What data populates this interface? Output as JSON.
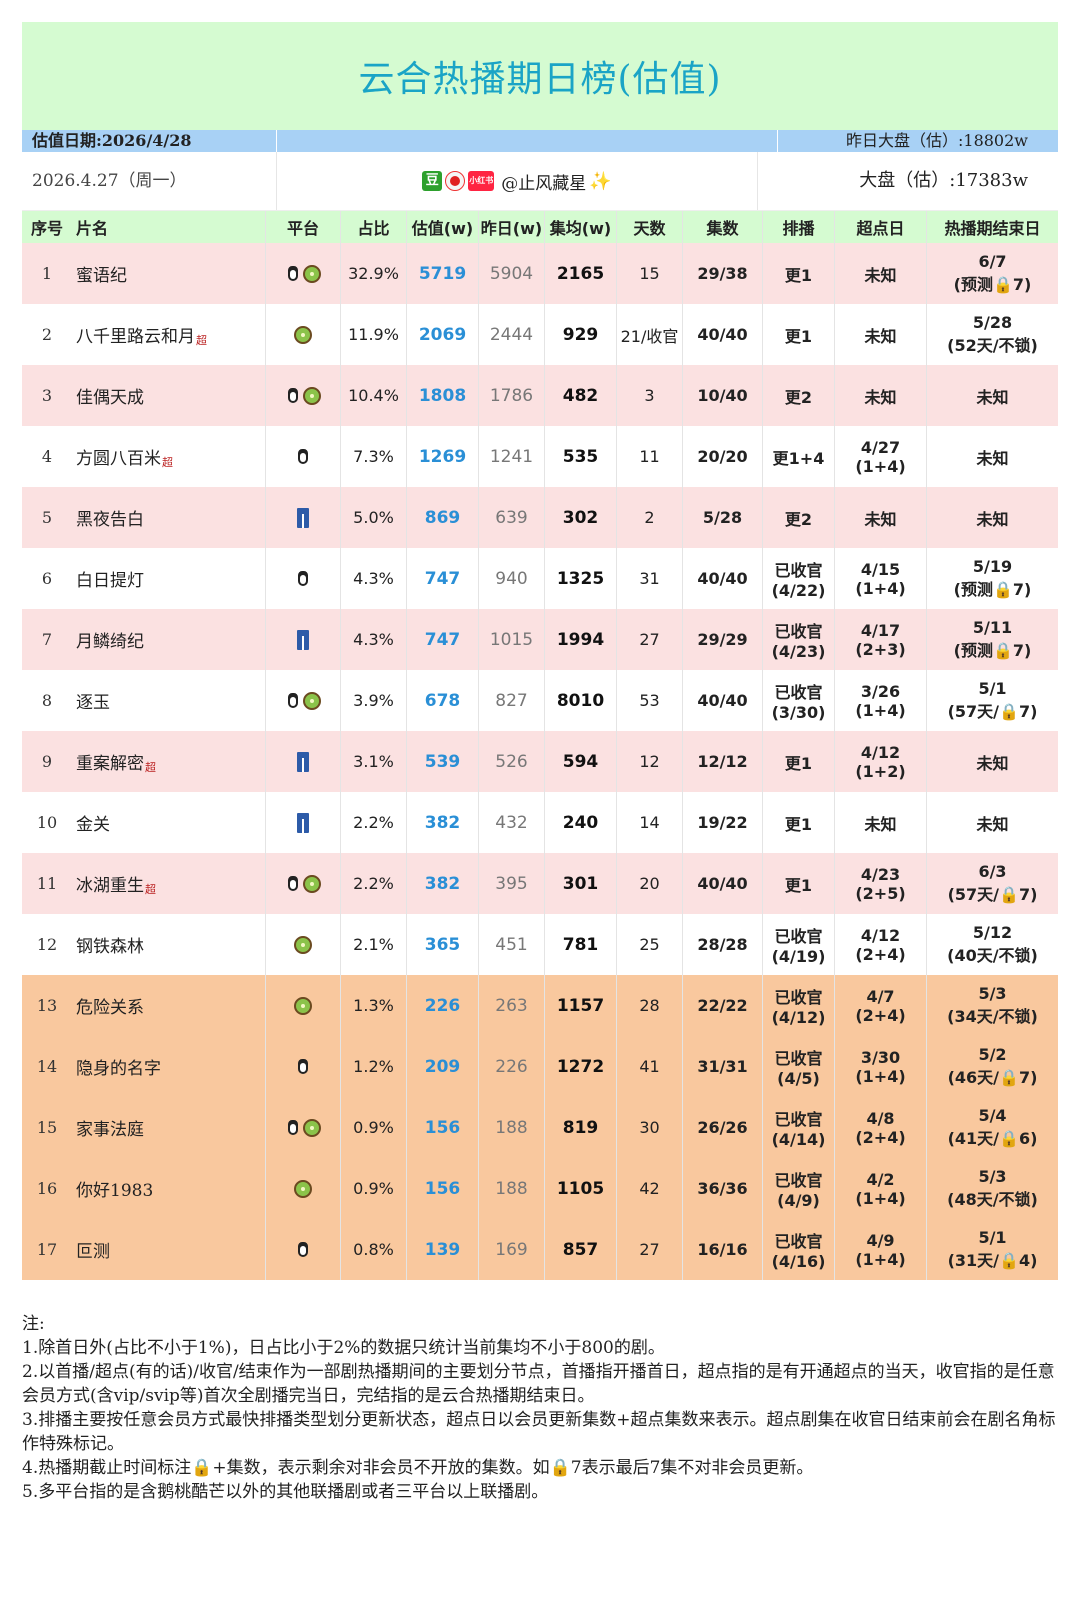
{
  "title": "云合热播期日榜(估值)",
  "date_bar": {
    "left": "估值日期:2026/4/28",
    "right": "昨日大盘（估）:18802w"
  },
  "info_bar": {
    "left": "2026.4.27（周一）",
    "badge_dou": "豆",
    "badge_xhs": "小红书",
    "handle": "@止风藏星",
    "sparkle": "✨",
    "right": "大盘（估）:17383w"
  },
  "headers": [
    "序号",
    "片名",
    "平台",
    "占比",
    "估值(w)",
    "昨日(w)",
    "集均(w)",
    "天数",
    "集数",
    "排播",
    "超点日",
    "热播期结束日"
  ],
  "rows": [
    {
      "no": "1",
      "name": "蜜语纪",
      "sup": "",
      "plat": [
        "penguin-icon",
        "kiwi-icon"
      ],
      "ratio": "32.9%",
      "est": "5719",
      "yes": "5904",
      "avg": "2165",
      "days": "15",
      "eps": "29/38",
      "sched": [
        "更1"
      ],
      "peak": [
        "未知"
      ],
      "end": [
        "6/7",
        "(预测🔒7)"
      ],
      "bg": "pink"
    },
    {
      "no": "2",
      "name": "八千里路云和月",
      "sup": "超",
      "plat": [
        "kiwi-icon"
      ],
      "ratio": "11.9%",
      "est": "2069",
      "yes": "2444",
      "avg": "929",
      "days": "21/收官",
      "eps": "40/40",
      "sched": [
        "更1"
      ],
      "peak": [
        "未知"
      ],
      "end": [
        "5/28",
        "(52天/不锁)"
      ],
      "bg": "white"
    },
    {
      "no": "3",
      "name": "佳偶天成",
      "sup": "",
      "plat": [
        "penguin-icon",
        "kiwi-icon"
      ],
      "ratio": "10.4%",
      "est": "1808",
      "yes": "1786",
      "avg": "482",
      "days": "3",
      "eps": "10/40",
      "sched": [
        "更2"
      ],
      "peak": [
        "未知"
      ],
      "end": [
        "未知"
      ],
      "bg": "pink"
    },
    {
      "no": "4",
      "name": "方圆八百米",
      "sup": "超",
      "plat": [
        "penguin-icon"
      ],
      "ratio": "7.3%",
      "est": "1269",
      "yes": "1241",
      "avg": "535",
      "days": "11",
      "eps": "20/20",
      "sched": [
        "更1+4"
      ],
      "peak": [
        "4/27",
        "(1+4)"
      ],
      "end": [
        "未知"
      ],
      "bg": "white"
    },
    {
      "no": "5",
      "name": "黑夜告白",
      "sup": "",
      "plat": [
        "jeans-icon"
      ],
      "ratio": "5.0%",
      "est": "869",
      "yes": "639",
      "avg": "302",
      "days": "2",
      "eps": "5/28",
      "sched": [
        "更2"
      ],
      "peak": [
        "未知"
      ],
      "end": [
        "未知"
      ],
      "bg": "pink"
    },
    {
      "no": "6",
      "name": "白日提灯",
      "sup": "",
      "plat": [
        "penguin-icon"
      ],
      "ratio": "4.3%",
      "est": "747",
      "yes": "940",
      "avg": "1325",
      "days": "31",
      "eps": "40/40",
      "sched": [
        "已收官",
        "(4/22)"
      ],
      "peak": [
        "4/15",
        "(1+4)"
      ],
      "end": [
        "5/19",
        "(预测🔒7)"
      ],
      "bg": "white"
    },
    {
      "no": "7",
      "name": "月鳞绮纪",
      "sup": "",
      "plat": [
        "jeans-icon"
      ],
      "ratio": "4.3%",
      "est": "747",
      "yes": "1015",
      "avg": "1994",
      "days": "27",
      "eps": "29/29",
      "sched": [
        "已收官",
        "(4/23)"
      ],
      "peak": [
        "4/17",
        "(2+3)"
      ],
      "end": [
        "5/11",
        "(预测🔒7)"
      ],
      "bg": "pink"
    },
    {
      "no": "8",
      "name": "逐玉",
      "sup": "",
      "plat": [
        "penguin-icon",
        "kiwi-icon"
      ],
      "ratio": "3.9%",
      "est": "678",
      "yes": "827",
      "avg": "8010",
      "days": "53",
      "eps": "40/40",
      "sched": [
        "已收官",
        "(3/30)"
      ],
      "peak": [
        "3/26",
        "(1+4)"
      ],
      "end": [
        "5/1",
        "(57天/🔒7)"
      ],
      "bg": "white"
    },
    {
      "no": "9",
      "name": "重案解密",
      "sup": "超",
      "plat": [
        "jeans-icon"
      ],
      "ratio": "3.1%",
      "est": "539",
      "yes": "526",
      "avg": "594",
      "days": "12",
      "eps": "12/12",
      "sched": [
        "更1"
      ],
      "peak": [
        "4/12",
        "(1+2)"
      ],
      "end": [
        "未知"
      ],
      "bg": "pink"
    },
    {
      "no": "10",
      "name": "金关",
      "sup": "",
      "plat": [
        "jeans-icon"
      ],
      "ratio": "2.2%",
      "est": "382",
      "yes": "432",
      "avg": "240",
      "days": "14",
      "eps": "19/22",
      "sched": [
        "更1"
      ],
      "peak": [
        "未知"
      ],
      "end": [
        "未知"
      ],
      "bg": "white"
    },
    {
      "no": "11",
      "name": "冰湖重生",
      "sup": "超",
      "plat": [
        "penguin-icon",
        "kiwi-icon"
      ],
      "ratio": "2.2%",
      "est": "382",
      "yes": "395",
      "avg": "301",
      "days": "20",
      "eps": "40/40",
      "sched": [
        "更1"
      ],
      "peak": [
        "4/23",
        "(2+5)"
      ],
      "end": [
        "6/3",
        "(57天/🔒7)"
      ],
      "bg": "pink"
    },
    {
      "no": "12",
      "name": "钢铁森林",
      "sup": "",
      "plat": [
        "kiwi-icon"
      ],
      "ratio": "2.1%",
      "est": "365",
      "yes": "451",
      "avg": "781",
      "days": "25",
      "eps": "28/28",
      "sched": [
        "已收官",
        "(4/19)"
      ],
      "peak": [
        "4/12",
        "(2+4)"
      ],
      "end": [
        "5/12",
        "(40天/不锁)"
      ],
      "bg": "white"
    },
    {
      "no": "13",
      "name": "危险关系",
      "sup": "",
      "plat": [
        "kiwi-icon"
      ],
      "ratio": "1.3%",
      "est": "226",
      "yes": "263",
      "avg": "1157",
      "days": "28",
      "eps": "22/22",
      "sched": [
        "已收官",
        "(4/12)"
      ],
      "peak": [
        "4/7",
        "(2+4)"
      ],
      "end": [
        "5/3",
        "(34天/不锁)"
      ],
      "bg": "orange"
    },
    {
      "no": "14",
      "name": "隐身的名字",
      "sup": "",
      "plat": [
        "penguin-icon"
      ],
      "ratio": "1.2%",
      "est": "209",
      "yes": "226",
      "avg": "1272",
      "days": "41",
      "eps": "31/31",
      "sched": [
        "已收官",
        "(4/5)"
      ],
      "peak": [
        "3/30",
        "(1+4)"
      ],
      "end": [
        "5/2",
        "(46天/🔒7)"
      ],
      "bg": "orange"
    },
    {
      "no": "15",
      "name": "家事法庭",
      "sup": "",
      "plat": [
        "penguin-icon",
        "kiwi-icon"
      ],
      "ratio": "0.9%",
      "est": "156",
      "yes": "188",
      "avg": "819",
      "days": "30",
      "eps": "26/26",
      "sched": [
        "已收官",
        "(4/14)"
      ],
      "peak": [
        "4/8",
        "(2+4)"
      ],
      "end": [
        "5/4",
        "(41天/🔒6)"
      ],
      "bg": "orange"
    },
    {
      "no": "16",
      "name": "你好1983",
      "sup": "",
      "plat": [
        "kiwi-icon"
      ],
      "ratio": "0.9%",
      "est": "156",
      "yes": "188",
      "avg": "1105",
      "days": "42",
      "eps": "36/36",
      "sched": [
        "已收官",
        "(4/9)"
      ],
      "peak": [
        "4/2",
        "(1+4)"
      ],
      "end": [
        "5/3",
        "(48天/不锁)"
      ],
      "bg": "orange"
    },
    {
      "no": "17",
      "name": "叵测",
      "sup": "",
      "plat": [
        "penguin-icon"
      ],
      "ratio": "0.8%",
      "est": "139",
      "yes": "169",
      "avg": "857",
      "days": "27",
      "eps": "16/16",
      "sched": [
        "已收官",
        "(4/16)"
      ],
      "peak": [
        "4/9",
        "(1+4)"
      ],
      "end": [
        "5/1",
        "(31天/🔒4)"
      ],
      "bg": "orange"
    }
  ],
  "notes": [
    "注:",
    "1.除首日外(占比不小于1%)，日占比小于2%的数据只统计当前集均不小于800的剧。",
    "2.以首播/超点(有的话)/收官/结束作为一部剧热播期间的主要划分节点，首播指开播首日，超点指的是有开通超点的当天，收官指的是任意会员方式(含vip/svip等)首次全剧播完当日，完结指的是云合热播期结束日。",
    "3.排播主要按任意会员方式最快排播类型划分更新状态，超点日以会员更新集数+超点集数来表示。超点剧集在收官日结束前会在剧名角标作特殊标记。",
    "4.热播期截止时间标注🔒+集数，表示剩余对非会员不开放的集数。如🔒7表示最后7集不对非会员更新。",
    "5.多平台指的是含鹅桃酷芒以外的其他联播剧或者三平台以上联播剧。"
  ]
}
